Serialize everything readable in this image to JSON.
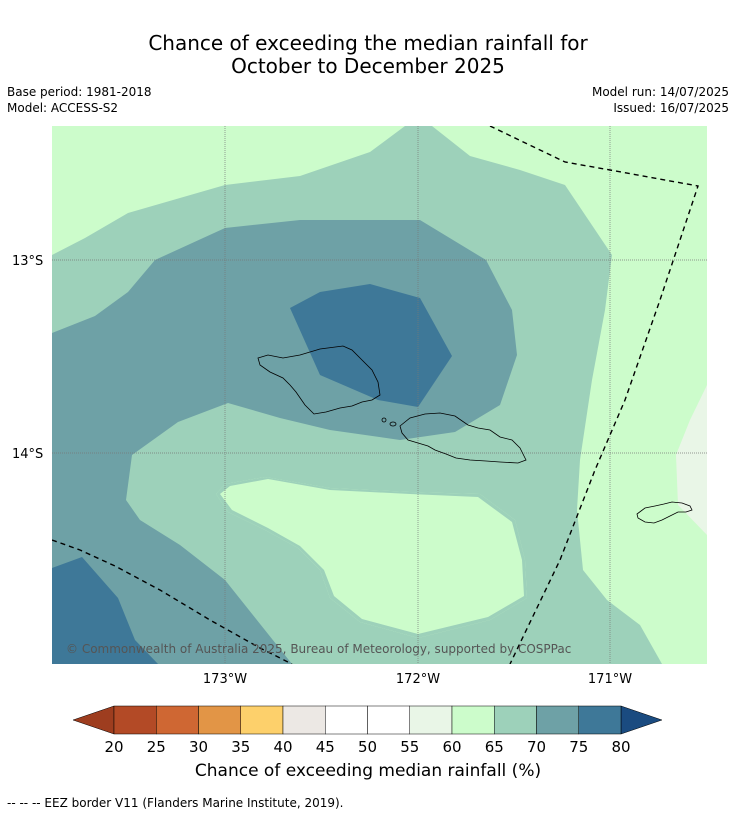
{
  "title_line1": "Chance of exceeding the median rainfall for",
  "title_line2": "October to December 2025",
  "base_period": "Base period: 1981-2018",
  "model": "Model: ACCESS-S2",
  "model_run": "Model run: 14/07/2025",
  "issued": "Issued: 16/07/2025",
  "lat_labels": [
    "13°S",
    "14°S"
  ],
  "lon_labels": [
    "173°W",
    "172°W",
    "171°W"
  ],
  "copyright": "© Commonwealth of Australia 2025, Bureau of Meteorology, supported by COSPPac",
  "colorbar": {
    "title": "Chance of exceeding median rainfall (%)",
    "ticks": [
      "20",
      "25",
      "30",
      "35",
      "40",
      "45",
      "50",
      "55",
      "60",
      "65",
      "70",
      "75",
      "80"
    ],
    "colors": [
      "#b34a26",
      "#cf6733",
      "#e29546",
      "#fdd06b",
      "#ece8e4",
      "#ffffff",
      "#ffffff",
      "#e9f6e7",
      "#ccfccb",
      "#9dd1ba",
      "#6ea1a6",
      "#3e7898"
    ],
    "low_color": "#9e3d1f",
    "high_color": "#1a4b80"
  },
  "footer": "--  --  -- EEZ border V11 (Flanders Marine Institute, 2019).",
  "map_colors": {
    "c60_65": "#ccfccb",
    "c65_70": "#9dd1ba",
    "c70_75": "#6ea1a6",
    "c75_80": "#3e7898",
    "c55_60": "#e9f6e7"
  }
}
